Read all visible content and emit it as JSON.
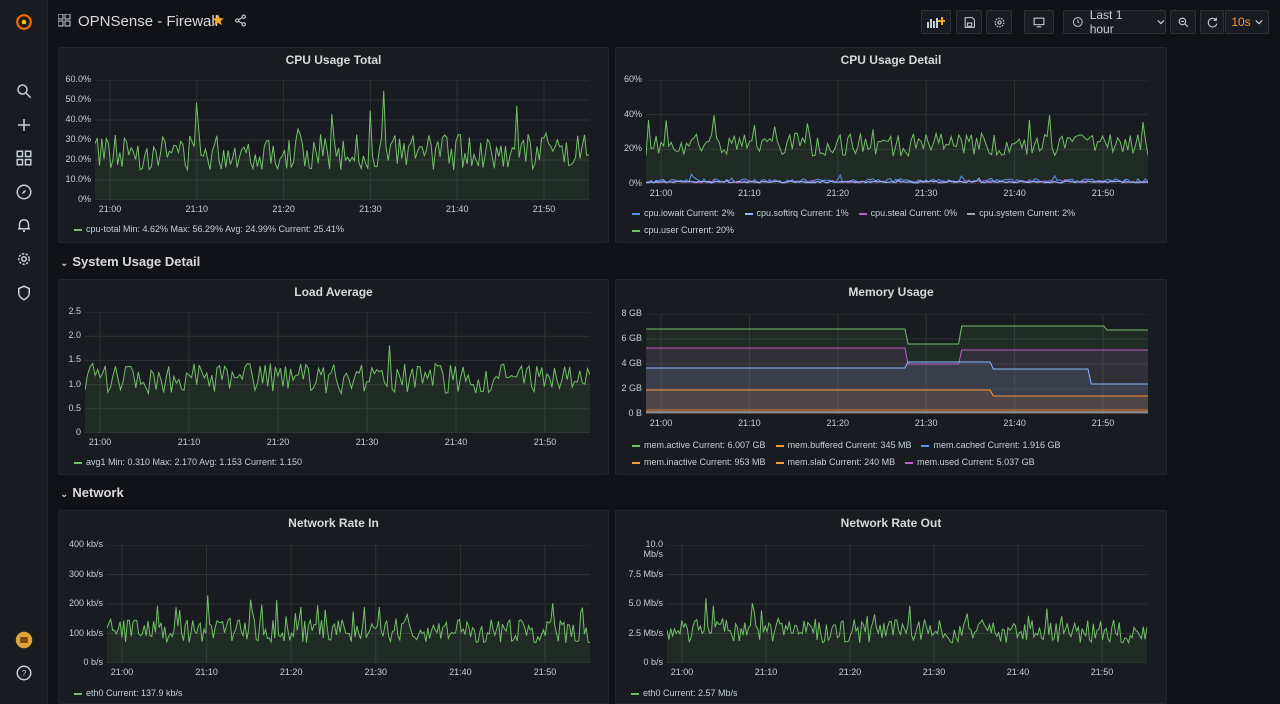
{
  "sidebar": {
    "items": [
      "grafana-logo-icon",
      "search-icon",
      "plus-icon",
      "dashboards-icon",
      "explore-icon",
      "alerting-icon",
      "configuration-icon",
      "shield-icon",
      "avatar",
      "help-icon"
    ]
  },
  "topbar": {
    "title": "OPNSense - Firewall",
    "time_range": "Last 1 hour",
    "refresh": "10s"
  },
  "rows": {
    "system": "System Usage Detail",
    "network": "Network"
  },
  "colors": {
    "green": "#73bf69",
    "blue": "#8ab8ff",
    "pink": "#c15cca",
    "orange": "#ff9830",
    "teal": "#5794f2"
  },
  "panels": {
    "cpu_total": {
      "title": "CPU Usage Total",
      "yticks": [
        "60.0%",
        "50.0%",
        "40.0%",
        "30.0%",
        "20.0%",
        "10.0%",
        "0%"
      ],
      "xticks": [
        "21:00",
        "21:10",
        "21:20",
        "21:30",
        "21:40",
        "21:50"
      ],
      "legend": [
        "cpu-total  Min: 4.62%  Max: 56.29%  Avg: 24.99%  Current: 25.41%"
      ]
    },
    "cpu_detail": {
      "title": "CPU Usage Detail",
      "yticks": [
        "60%",
        "40%",
        "20%",
        "0%"
      ],
      "xticks": [
        "21:00",
        "21:10",
        "21:20",
        "21:30",
        "21:40",
        "21:50"
      ],
      "legend": [
        "cpu.iowait  Current: 2%",
        "cpu.softirq  Current: 1%",
        "cpu.steal  Current: 0%",
        "cpu.system  Current: 2%",
        "cpu.user  Current: 20%"
      ]
    },
    "load": {
      "title": "Load Average",
      "yticks": [
        "2.5",
        "2.0",
        "1.5",
        "1.0",
        "0.5",
        "0"
      ],
      "xticks": [
        "21:00",
        "21:10",
        "21:20",
        "21:30",
        "21:40",
        "21:50"
      ],
      "legend": [
        "avg1  Min: 0.310  Max: 2.170  Avg: 1.153  Current: 1.150"
      ]
    },
    "memory": {
      "title": "Memory Usage",
      "yticks": [
        "8 GB",
        "6 GB",
        "4 GB",
        "2 GB",
        "0 B"
      ],
      "xticks": [
        "21:00",
        "21:10",
        "21:20",
        "21:30",
        "21:40",
        "21:50"
      ],
      "legend": [
        "mem.active  Current: 6.007 GB",
        "mem.buffered  Current: 345 MB",
        "mem.cached  Current: 1.916 GB",
        "mem.inactive  Current: 953 MB",
        "mem.slab  Current: 240 MB",
        "mem.used  Current: 5.037 GB"
      ]
    },
    "net_in": {
      "title": "Network Rate In",
      "yticks": [
        "400 kb/s",
        "300 kb/s",
        "200 kb/s",
        "100 kb/s",
        "0 b/s"
      ],
      "xticks": [
        "21:00",
        "21:10",
        "21:20",
        "21:30",
        "21:40",
        "21:50"
      ],
      "legend": [
        "eth0  Current: 137.9 kb/s"
      ]
    },
    "net_out": {
      "title": "Network Rate Out",
      "yticks": [
        "10.0 Mb/s",
        "7.5 Mb/s",
        "5.0 Mb/s",
        "2.5 Mb/s",
        "0 b/s"
      ],
      "xticks": [
        "21:00",
        "21:10",
        "21:20",
        "21:30",
        "21:40",
        "21:50"
      ],
      "legend": [
        "eth0  Current: 2.57 Mb/s"
      ]
    }
  },
  "chart_data": [
    {
      "type": "line",
      "title": "CPU Usage Total",
      "ylim": [
        0,
        60
      ],
      "series": [
        {
          "name": "cpu-total",
          "min": 4.62,
          "max": 56.29,
          "avg": 24.99,
          "current": 25.41
        }
      ]
    },
    {
      "type": "line",
      "title": "CPU Usage Detail",
      "ylim": [
        0,
        60
      ],
      "series": [
        {
          "name": "cpu.iowait",
          "current": 2
        },
        {
          "name": "cpu.softirq",
          "current": 1
        },
        {
          "name": "cpu.steal",
          "current": 0
        },
        {
          "name": "cpu.system",
          "current": 2
        },
        {
          "name": "cpu.user",
          "current": 20
        }
      ]
    },
    {
      "type": "line",
      "title": "Load Average",
      "ylim": [
        0,
        2.5
      ],
      "series": [
        {
          "name": "avg1",
          "min": 0.31,
          "max": 2.17,
          "avg": 1.153,
          "current": 1.15
        }
      ]
    },
    {
      "type": "area",
      "title": "Memory Usage",
      "ylim": [
        0,
        8
      ],
      "series": [
        {
          "name": "mem.active",
          "current": "6.007 GB"
        },
        {
          "name": "mem.buffered",
          "current": "345 MB"
        },
        {
          "name": "mem.cached",
          "current": "1.916 GB"
        },
        {
          "name": "mem.inactive",
          "current": "953 MB"
        },
        {
          "name": "mem.slab",
          "current": "240 MB"
        },
        {
          "name": "mem.used",
          "current": "5.037 GB"
        }
      ]
    },
    {
      "type": "line",
      "title": "Network Rate In",
      "ylim": [
        0,
        400
      ],
      "series": [
        {
          "name": "eth0",
          "current": "137.9 kb/s"
        }
      ]
    },
    {
      "type": "line",
      "title": "Network Rate Out",
      "ylim": [
        0,
        10
      ],
      "series": [
        {
          "name": "eth0",
          "current": "2.57 Mb/s"
        }
      ]
    }
  ]
}
